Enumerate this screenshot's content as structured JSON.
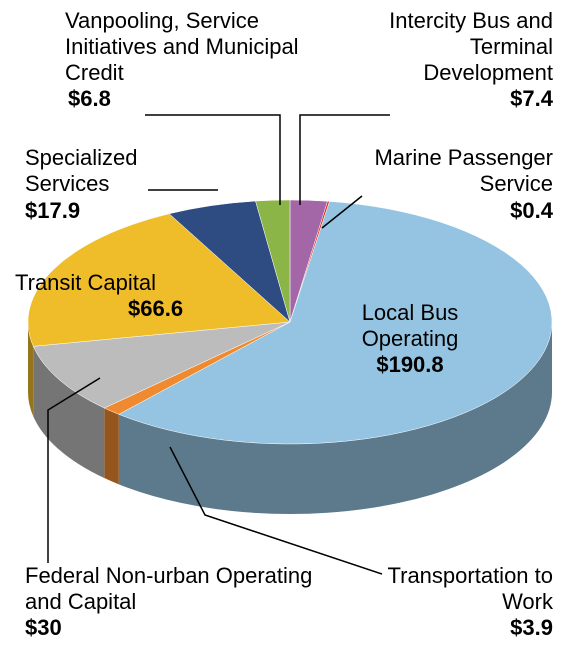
{
  "chart_data": {
    "type": "pie3d",
    "categories": [
      "Intercity Bus and Terminal Development",
      "Marine Passenger Service",
      "Local Bus Operating",
      "Transportation to Work",
      "Federal Non-urban Operating and Capital",
      "Transit Capital",
      "Specialized Services",
      "Vanpooling, Service Initiatives and Municipal Credit"
    ],
    "values": [
      7.4,
      0.4,
      190.8,
      3.9,
      30,
      66.6,
      17.9,
      6.8
    ],
    "value_labels": [
      "$7.4",
      "$0.4",
      "$190.8",
      "$3.9",
      "$30",
      "$66.6",
      "$17.9",
      "$6.8"
    ],
    "colors": [
      "#a366a6",
      "#e0302a",
      "#94c4e2",
      "#f08a30",
      "#bcbcbc",
      "#f0bd2a",
      "#2e4c82",
      "#8cb548"
    ]
  }
}
